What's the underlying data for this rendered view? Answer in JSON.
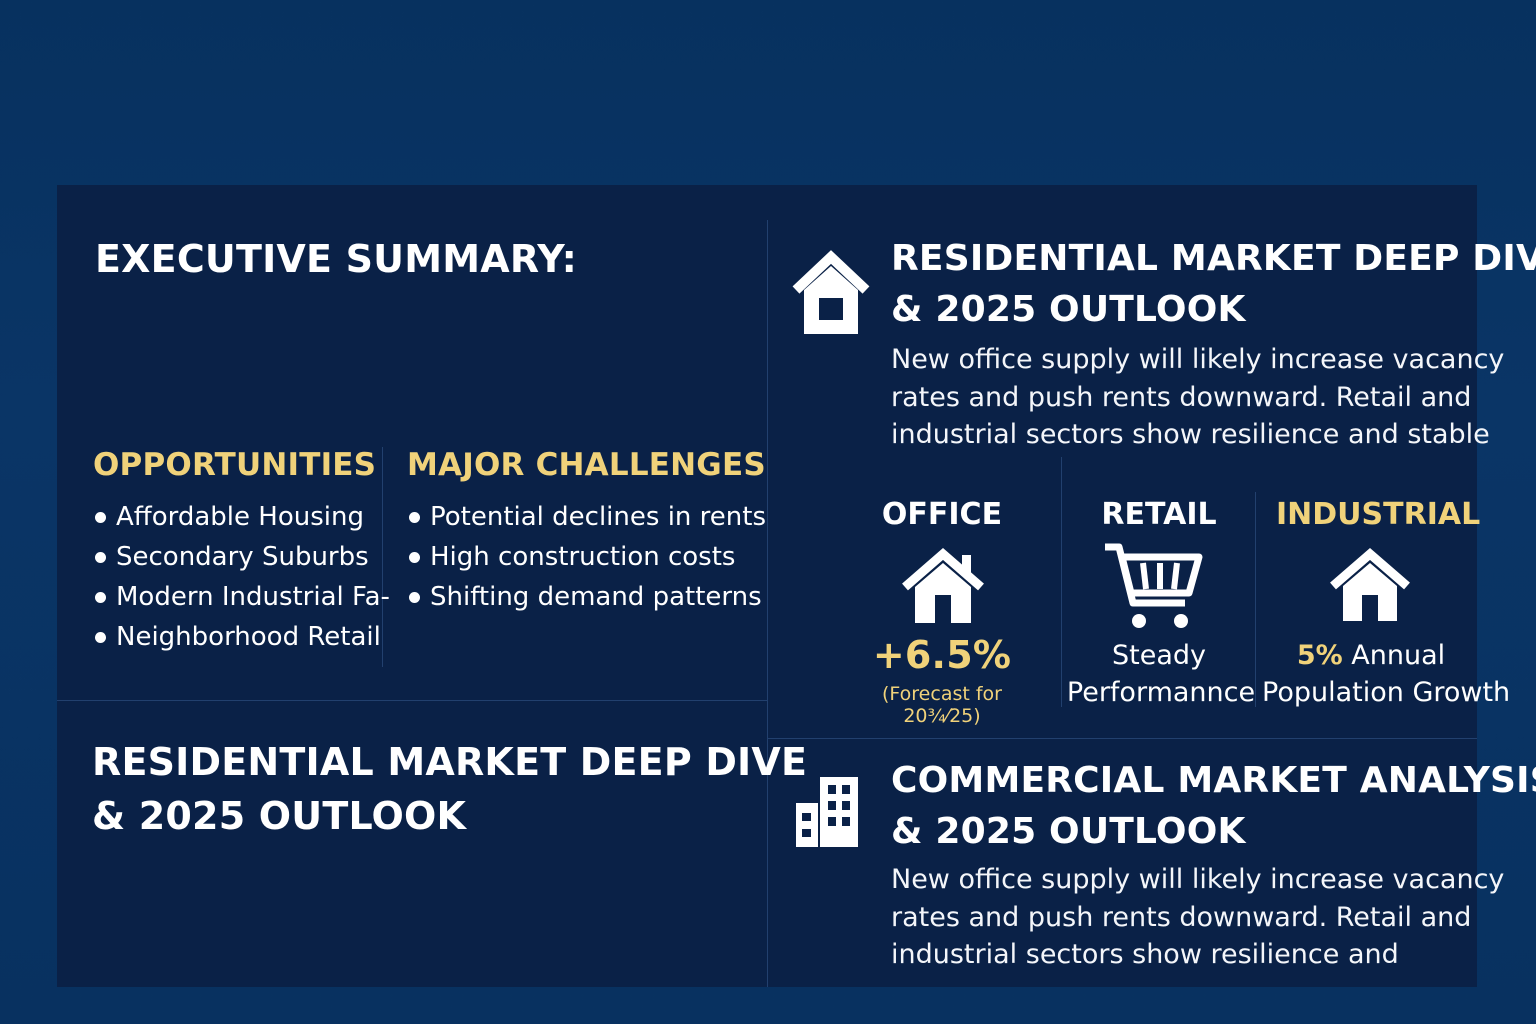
{
  "executive": {
    "title": "EXECUTIVE SUMMARY:",
    "opportunities": {
      "heading": "OPPORTUNITIES",
      "items": [
        "Affordable Housing",
        "Secondary Suburbs",
        "Modern Industrial Fa-",
        "Neighborhood Retail"
      ]
    },
    "challenges": {
      "heading": "MAJOR CHALLENGES",
      "items": [
        "Potential declines in rents",
        "High construction costs",
        "Shifting demand patterns"
      ]
    }
  },
  "left_bottom": {
    "title_line1": "RESIDENTIAL MARKET DEEP DIVE",
    "title_line2": "& 2025 OUTLOOK"
  },
  "residential": {
    "icon": "house-icon",
    "title_line1": "RESIDENTIAL MARKET DEEP DIVE",
    "title_line2": "& 2025 OUTLOOK",
    "body_lines": [
      "New office supply will likely increase vacancy",
      "rates and push rents downward. Retail and",
      "industrial sectors show resilience and stable"
    ]
  },
  "metrics": {
    "office": {
      "label": "OFFICE",
      "icon": "house-icon",
      "value": "+6.5%",
      "note": "(Forecast for 20¾⁄25)"
    },
    "retail": {
      "label": "RETAIL",
      "icon": "shopping-cart-icon",
      "line1": "Steady",
      "line2": "Performannce"
    },
    "industrial": {
      "label": "INDUSTRIAL",
      "icon": "house-icon",
      "value": "5%",
      "line1_rest": " Annual",
      "line2": "Population Growth"
    }
  },
  "commercial": {
    "icon": "building-icon",
    "title_line1": "COMMERCIAL MARKET ANALYSIS",
    "title_line2": "& 2025 OUTLOOK",
    "body_lines": [
      "New office supply will likely increase vacancy",
      "rates and push rents downward. Retail and",
      "industrial sectors show resilience and"
    ]
  },
  "colors": {
    "background": "#0a3566",
    "panel": "#0a2147",
    "accent": "#f0d27a",
    "divider": "#22406e"
  }
}
